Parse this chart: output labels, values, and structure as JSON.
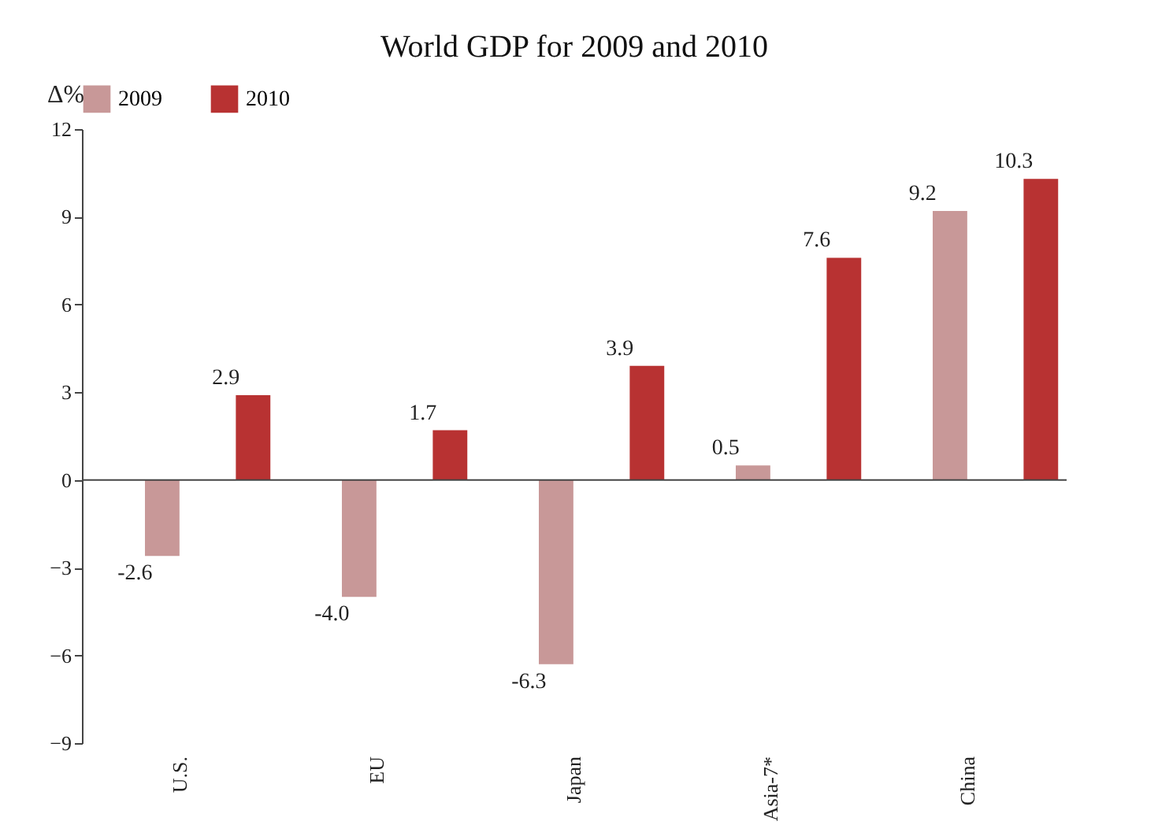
{
  "chart_data": {
    "type": "bar",
    "title": "World GDP for 2009 and 2010",
    "ylabel": "Δ%",
    "categories": [
      "U.S.",
      "EU",
      "Japan",
      "Asia-7*",
      "China"
    ],
    "series": [
      {
        "name": "2009",
        "color": "#c89898",
        "values": [
          -2.6,
          -4.0,
          -6.3,
          0.5,
          9.2
        ],
        "value_labels": [
          "-2.6",
          "-4.0",
          "-6.3",
          "0.5",
          "9.2"
        ]
      },
      {
        "name": "2010",
        "color": "#b83232",
        "values": [
          2.9,
          1.7,
          3.9,
          7.6,
          10.3
        ],
        "value_labels": [
          "2.9",
          "1.7",
          "3.9",
          "7.6",
          "10.3"
        ]
      }
    ],
    "ylim": [
      -9,
      12
    ],
    "yticks": [
      -9,
      -6,
      -3,
      0,
      3,
      6,
      9,
      12
    ],
    "grid": false,
    "legend": "top",
    "ref_lines": [
      {
        "axis": "y",
        "value": 0
      }
    ]
  }
}
